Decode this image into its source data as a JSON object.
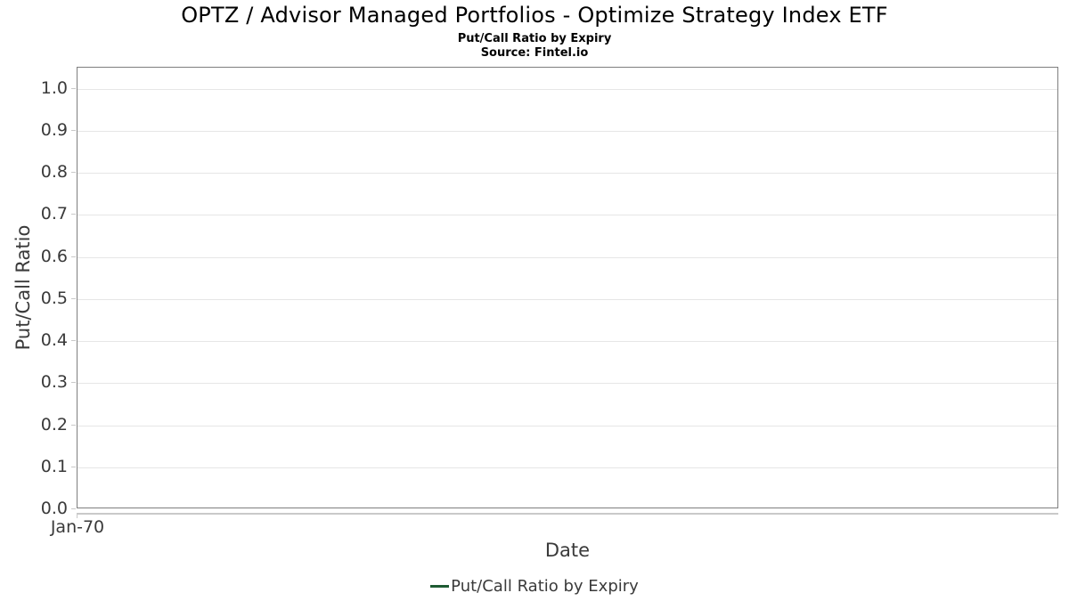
{
  "figure": {
    "title": "OPTZ / Advisor Managed Portfolios - Optimize Strategy Index ETF",
    "subtitle": "Put/Call Ratio by Expiry",
    "source": "Source: Fintel.io"
  },
  "chart_data": {
    "type": "line",
    "title": "OPTZ / Advisor Managed Portfolios - Optimize Strategy Index ETF",
    "subtitle": "Put/Call Ratio by Expiry",
    "source_note": "Source: Fintel.io",
    "xlabel": "Date",
    "ylabel": "Put/Call Ratio",
    "x_tick_labels": [
      "Jan-70"
    ],
    "y_tick_labels": [
      "0.0",
      "0.1",
      "0.2",
      "0.3",
      "0.4",
      "0.5",
      "0.6",
      "0.7",
      "0.8",
      "0.9",
      "1.0"
    ],
    "ylim": [
      0,
      1.05
    ],
    "grid": true,
    "legend_position": "bottom",
    "series": [
      {
        "name": "Put/Call Ratio by Expiry",
        "color": "#1e5b33",
        "marker": "line",
        "x": [],
        "values": []
      }
    ]
  },
  "colors": {
    "background": "#ffffff",
    "plot_border": "#7f7f7f",
    "gridline": "#e6e6e6",
    "tick": "#c9c9c9",
    "axis_text": "#3a3a3a",
    "title_text": "#000000",
    "series_green": "#1e5b33"
  }
}
